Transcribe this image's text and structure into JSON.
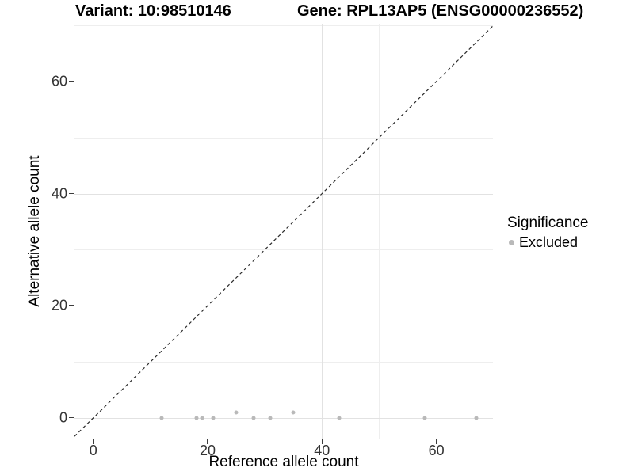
{
  "chart_data": {
    "type": "scatter",
    "title_left": "Variant: 10:98510146",
    "title_right": "Gene: RPL13AP5 (ENSG00000236552)",
    "xlabel": "Reference allele count",
    "ylabel": "Alternative allele count",
    "xlim": [
      -3.3,
      69.9
    ],
    "ylim": [
      -3.7,
      70.3
    ],
    "x_ticks": {
      "major": [
        0,
        20,
        40,
        60
      ],
      "minor": [
        10,
        30,
        50,
        70
      ]
    },
    "y_ticks": {
      "major": [
        0,
        20,
        40,
        60
      ],
      "minor": [
        10,
        30,
        50,
        70
      ]
    },
    "grid": {
      "shown": true,
      "major_color": "#e2e2e2",
      "minor_color": "#eeeeee"
    },
    "identity_line": {
      "equation": "y = x",
      "style": "dashed",
      "color": "#2a2a2a"
    },
    "legend": {
      "title": "Significance",
      "position": "right",
      "items": [
        {
          "label": "Excluded",
          "color": "#b9b9b9"
        }
      ]
    },
    "series": [
      {
        "name": "Excluded",
        "color": "#b9b9b9",
        "points": [
          {
            "x": 12,
            "y": 0
          },
          {
            "x": 18,
            "y": 0
          },
          {
            "x": 19,
            "y": 0
          },
          {
            "x": 21,
            "y": 0
          },
          {
            "x": 25,
            "y": 1
          },
          {
            "x": 28,
            "y": 0
          },
          {
            "x": 31,
            "y": 0
          },
          {
            "x": 35,
            "y": 1
          },
          {
            "x": 43,
            "y": 0
          },
          {
            "x": 58,
            "y": 0
          },
          {
            "x": 67,
            "y": 0
          }
        ]
      }
    ]
  }
}
